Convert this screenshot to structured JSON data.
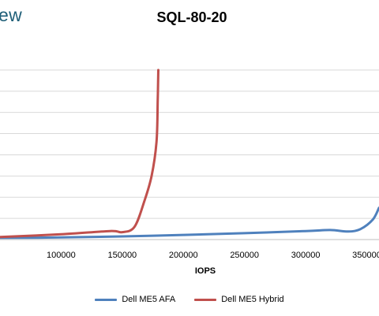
{
  "header": {
    "logo_text": "ew"
  },
  "chart_data": {
    "type": "line",
    "title": "SQL-80-20",
    "xlabel": "IOPS",
    "ylabel": "",
    "xlim": [
      50000,
      360000
    ],
    "ylim": [
      0,
      9
    ],
    "x_ticks": [
      100000,
      150000,
      200000,
      250000,
      300000,
      350000
    ],
    "x_tick_labels": [
      "100000",
      "150000",
      "200000",
      "250000",
      "300000",
      "350000"
    ],
    "y_gridlines": [
      1,
      2,
      3,
      4,
      5,
      6,
      7,
      8
    ],
    "grid": true,
    "legend_position": "bottom",
    "series": [
      {
        "name": "Dell ME5 AFA",
        "color": "#4f81bd",
        "x": [
          50000,
          100000,
          150000,
          200000,
          250000,
          300000,
          320000,
          335000,
          345000,
          355000,
          360000
        ],
        "y": [
          0.08,
          0.1,
          0.15,
          0.22,
          0.3,
          0.4,
          0.45,
          0.38,
          0.5,
          0.95,
          1.5
        ]
      },
      {
        "name": "Dell ME5 Hybrid",
        "color": "#c0504d",
        "x": [
          50000,
          100000,
          140000,
          150000,
          160000,
          168000,
          174000,
          178000,
          179000,
          179500
        ],
        "y": [
          0.12,
          0.25,
          0.4,
          0.35,
          0.6,
          1.8,
          3.0,
          4.6,
          6.5,
          8.0
        ]
      }
    ]
  }
}
